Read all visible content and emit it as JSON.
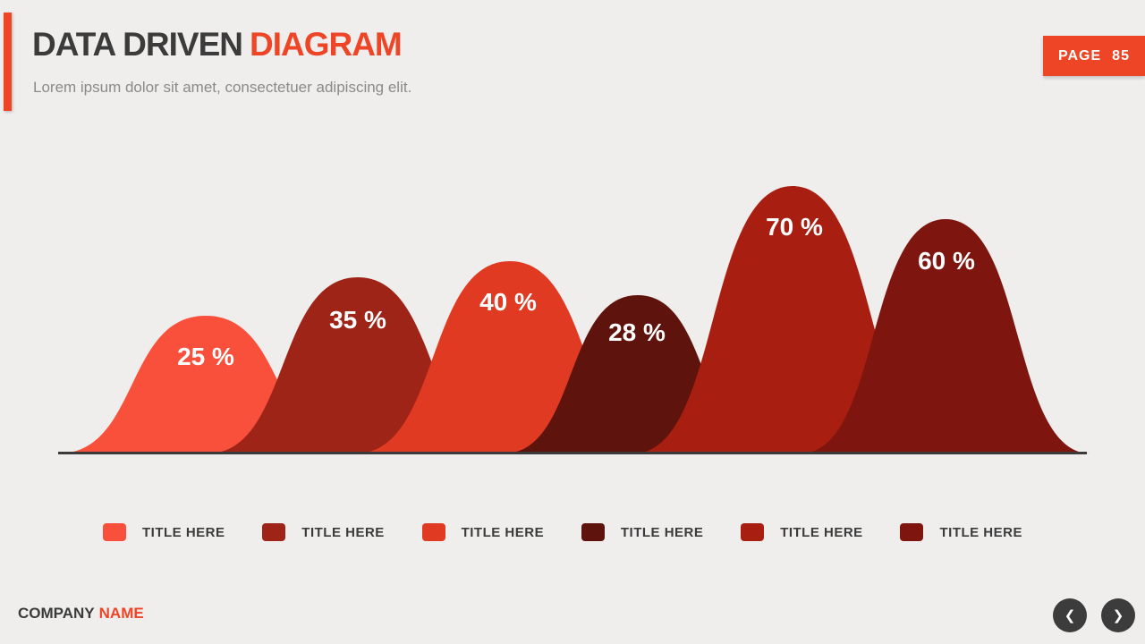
{
  "slide": {
    "title_primary": "DATA DRIVEN",
    "title_accent": "DIAGRAM",
    "subtitle": "Lorem ipsum dolor sit amet, consectetuer adipiscing elit.",
    "page_label": "PAGE",
    "page_number": "85",
    "footer_primary": "COMPANY",
    "footer_accent": "NAME",
    "accent_color": "#ee4526",
    "icons": {
      "prev": "❮",
      "next": "❯"
    }
  },
  "chart_data": {
    "type": "area",
    "description": "Six overlapping bell-shaped percentage curves on a shared dark baseline",
    "title": "DATA DRIVEN DIAGRAM",
    "legend_position": "bottom",
    "grid": false,
    "value_suffix": " %",
    "baseline_color": "#3a3a3a",
    "series": [
      {
        "label": "TITLE HERE",
        "value": 25,
        "color": "#f8503a"
      },
      {
        "label": "TITLE HERE",
        "value": 35,
        "color": "#9e2418"
      },
      {
        "label": "TITLE HERE",
        "value": 40,
        "color": "#e03a22"
      },
      {
        "label": "TITLE HERE",
        "value": 28,
        "color": "#5e130d"
      },
      {
        "label": "TITLE HERE",
        "value": 70,
        "color": "#a81f12"
      },
      {
        "label": "TITLE HERE",
        "value": 60,
        "color": "#7e160f"
      }
    ]
  }
}
